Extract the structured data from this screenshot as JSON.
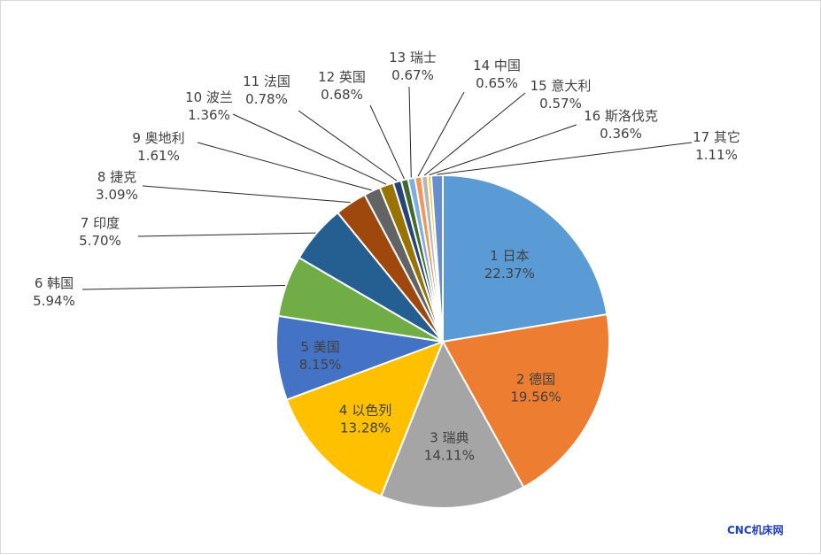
{
  "chart_data": {
    "type": "pie",
    "slices": [
      {
        "label": "1 日本",
        "value": 22.37,
        "value_label": "22.37%",
        "color": "#5B9BD5",
        "inside": true
      },
      {
        "label": "2 德国",
        "value": 19.56,
        "value_label": "19.56%",
        "color": "#ED7D31",
        "inside": true
      },
      {
        "label": "3 瑞典",
        "value": 14.11,
        "value_label": "14.11%",
        "color": "#A5A5A5",
        "inside": true
      },
      {
        "label": "4 以色列",
        "value": 13.28,
        "value_label": "13.28%",
        "color": "#FFC000",
        "inside": true
      },
      {
        "label": "5 美国",
        "value": 8.15,
        "value_label": "8.15%",
        "color": "#4472C4",
        "inside": true
      },
      {
        "label": "6 韩国",
        "value": 5.94,
        "value_label": "5.94%",
        "color": "#70AD47",
        "inside": false
      },
      {
        "label": "7 印度",
        "value": 5.7,
        "value_label": "5.70%",
        "color": "#255E91",
        "inside": false
      },
      {
        "label": "8 捷克",
        "value": 3.09,
        "value_label": "3.09%",
        "color": "#9E480E",
        "inside": false
      },
      {
        "label": "9 奥地利",
        "value": 1.61,
        "value_label": "1.61%",
        "color": "#636363",
        "inside": false
      },
      {
        "label": "10 波兰",
        "value": 1.36,
        "value_label": "1.36%",
        "color": "#997300",
        "inside": false
      },
      {
        "label": "11 法国",
        "value": 0.78,
        "value_label": "0.78%",
        "color": "#264478",
        "inside": false
      },
      {
        "label": "12 英国",
        "value": 0.68,
        "value_label": "0.68%",
        "color": "#43682B",
        "inside": false
      },
      {
        "label": "13 瑞士",
        "value": 0.67,
        "value_label": "0.67%",
        "color": "#7CAFDD",
        "inside": false
      },
      {
        "label": "14 中国",
        "value": 0.65,
        "value_label": "0.65%",
        "color": "#F1975A",
        "inside": false
      },
      {
        "label": "15 意大利",
        "value": 0.57,
        "value_label": "0.57%",
        "color": "#B7B7B7",
        "inside": false
      },
      {
        "label": "16 斯洛伐克",
        "value": 0.36,
        "value_label": "0.36%",
        "color": "#FFCD33",
        "inside": false
      },
      {
        "label": "17 其它",
        "value": 1.11,
        "value_label": "1.11%",
        "color": "#698ED0",
        "inside": false
      }
    ]
  },
  "watermark": "CNC机床网"
}
